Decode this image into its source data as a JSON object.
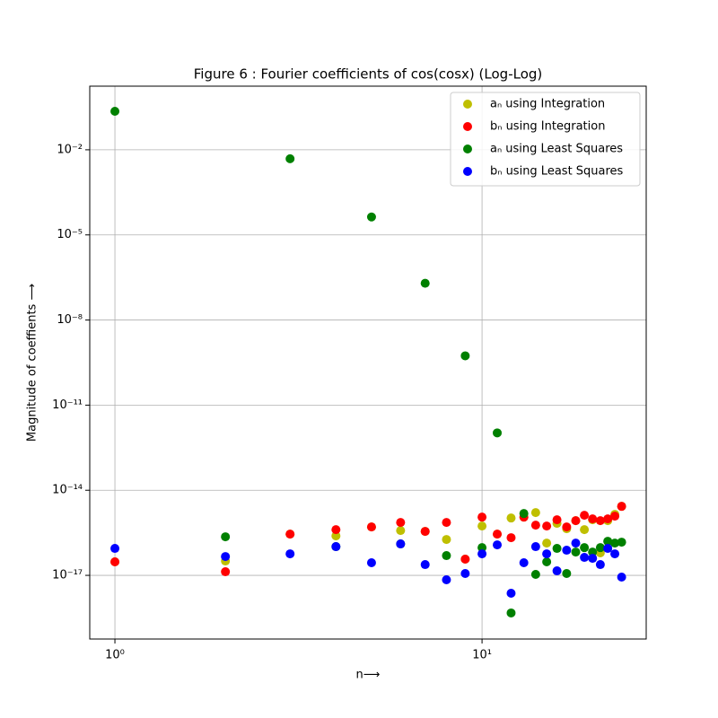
{
  "chart_data": {
    "type": "scatter",
    "title": "Figure 6 : Fourier coefficients of cos(cosx) (Log-Log)",
    "xlabel": "n⟶",
    "ylabel": "Magnitude of coeffients ⟶",
    "x": [
      1,
      2,
      3,
      4,
      5,
      6,
      7,
      8,
      9,
      10,
      11,
      12,
      13,
      14,
      15,
      16,
      17,
      18,
      19,
      20,
      21,
      22,
      23,
      24
    ],
    "series": [
      {
        "name": "aₙ using Integration",
        "color": "#bfbf00",
        "values": [
          3e-17,
          3.21e-17,
          2.84e-16,
          2.46e-16,
          5.09e-16,
          3.8e-16,
          3.54e-16,
          1.84e-16,
          3.72e-17,
          5.47e-16,
          2.84e-16,
          1.05e-15,
          1.13e-15,
          1.63e-15,
          1.37e-16,
          6.8e-16,
          4.4e-16,
          8.47e-16,
          4.09e-16,
          9.1e-16,
          6.2e-17,
          8.47e-16,
          1.41e-15,
          2.71e-15
        ]
      },
      {
        "name": "bₙ using Integration",
        "color": "#ff0000",
        "values": [
          3e-17,
          1.34e-17,
          2.84e-16,
          4.09e-16,
          5.09e-16,
          7.31e-16,
          3.54e-16,
          7.31e-16,
          3.72e-17,
          1.13e-15,
          2.84e-16,
          2.13e-16,
          1.13e-15,
          5.89e-16,
          5.47e-16,
          9.1e-16,
          5.09e-16,
          8.47e-16,
          1.31e-15,
          9.8e-16,
          8.47e-16,
          9.8e-16,
          1.22e-15,
          2.71e-15
        ]
      },
      {
        "name": "aₙ using Least Squares",
        "color": "#008000",
        "values": [
          0.228,
          2.29e-16,
          0.00483,
          1.03e-16,
          4.28e-05,
          1.28e-16,
          1.97e-07,
          4.97e-17,
          5.47e-10,
          9.5e-17,
          1.05e-12,
          4.73e-19,
          1.51e-15,
          1.08e-17,
          2.99e-17,
          8.9e-17,
          1.16e-17,
          6.64e-17,
          9.5e-17,
          6.64e-17,
          9.5e-17,
          1.59e-16,
          1.37e-16,
          1.48e-16
        ]
      },
      {
        "name": "bₙ using Least Squares",
        "color": "#0000ff",
        "values": [
          8.9e-17,
          4.61e-17,
          5.74e-17,
          1.03e-16,
          2.78e-17,
          1.28e-16,
          2.4e-17,
          6.98e-18,
          1.16e-17,
          5.74e-17,
          1.19e-16,
          2.34e-18,
          2.78e-17,
          1.03e-16,
          5.74e-17,
          1.44e-17,
          7.69e-17,
          1.37e-16,
          4.3e-17,
          3.99e-17,
          2.4e-17,
          8.9e-17,
          5.74e-17,
          8.67e-18
        ]
      }
    ],
    "xscale": "log",
    "yscale": "log",
    "xlim": [
      0.854,
      28.0
    ],
    "ylim": [
      5.7e-20,
      1.75
    ],
    "xticks": [
      {
        "value": 1,
        "label": "10⁰"
      },
      {
        "value": 10,
        "label": "10¹"
      }
    ],
    "yticks": [
      {
        "value": 1e-17,
        "label": "10⁻¹⁷"
      },
      {
        "value": 1e-14,
        "label": "10⁻¹⁴"
      },
      {
        "value": 1e-11,
        "label": "10⁻¹¹"
      },
      {
        "value": 1e-08,
        "label": "10⁻⁸"
      },
      {
        "value": 1e-05,
        "label": "10⁻⁵"
      },
      {
        "value": 0.01,
        "label": "10⁻²"
      }
    ],
    "grid": true,
    "legend": "upper right"
  }
}
